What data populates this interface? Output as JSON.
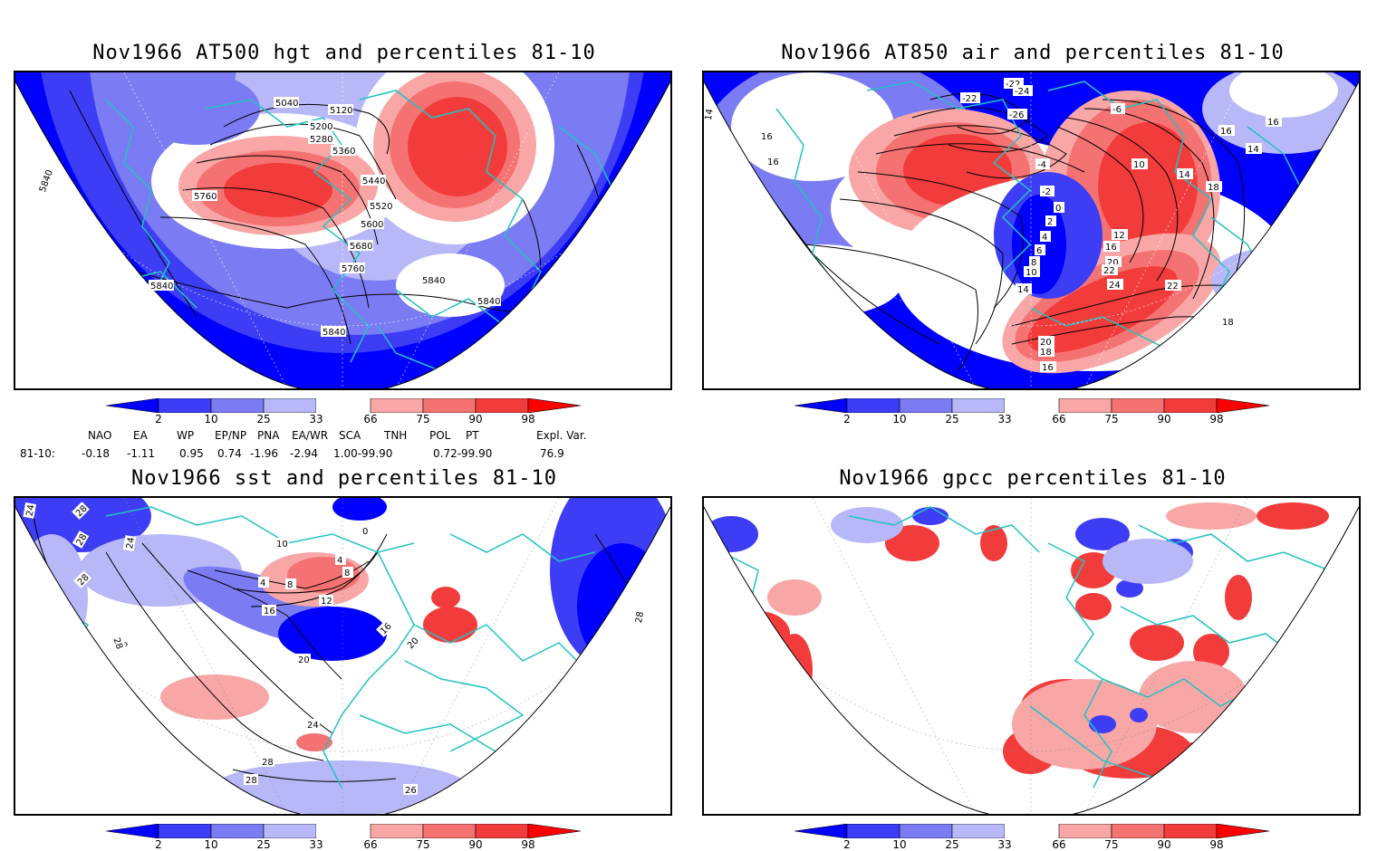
{
  "panels": [
    {
      "id": "hgt500",
      "title": "Nov1966 AT500 hgt and percentiles 81-10",
      "contour_labels": [
        "5040",
        "5120",
        "5200",
        "5280",
        "5360",
        "5440",
        "5520",
        "5600",
        "5680",
        "5760",
        "5760",
        "5840",
        "5840",
        "5840",
        "5840",
        "5840"
      ]
    },
    {
      "id": "air850",
      "title": "Nov1966 AT850 air and percentiles 81-10",
      "contour_labels": [
        "-22",
        "-24",
        "-22",
        "-26",
        "-4",
        "-2",
        "0",
        "2",
        "4",
        "6",
        "8",
        "10",
        "14",
        "16",
        "16",
        "16",
        "14",
        "16",
        "18",
        "14",
        "-6",
        "10",
        "12",
        "16",
        "20",
        "22",
        "24",
        "22",
        "20",
        "18",
        "16",
        "18",
        "14"
      ]
    },
    {
      "id": "sst",
      "title": "Nov1966 sst and percentiles 81-10",
      "contour_labels": [
        "24",
        "28",
        "28",
        "24",
        "28",
        "28",
        "10",
        "4",
        "8",
        "12",
        "16",
        "16",
        "20",
        "20",
        "24",
        "28",
        "28",
        "28",
        "26",
        "0",
        "4",
        "8",
        "28"
      ]
    },
    {
      "id": "gpcc",
      "title": "Nov1966 gpcc percentiles 81-10",
      "contour_labels": []
    }
  ],
  "colorbar": {
    "ticks": [
      "2",
      "10",
      "25",
      "33",
      "66",
      "75",
      "90",
      "98"
    ],
    "colors": {
      "deep_blue": "#0000ff",
      "mid_blue": "#3d3df5",
      "light_blue": "#7b7bf3",
      "pale_blue": "#b8b8f8",
      "pale_red": "#f8a6a6",
      "light_red": "#f57272",
      "mid_red": "#f23c3c",
      "deep_red": "#ff0000",
      "coast": "#21c3c0"
    }
  },
  "teleconnections": {
    "headers": [
      "NAO",
      "EA",
      "WP",
      "EP/NP",
      "PNA",
      "EA/WR",
      "SCA",
      "TNH",
      "POL",
      "PT",
      "Expl. Var."
    ],
    "row_label": "81-10:",
    "values": [
      "-0.18",
      "-1.11",
      "0.95",
      "0.74",
      "-1.96",
      "-2.94",
      "1.00-99.90",
      "0.72-99.90",
      "76.9"
    ]
  }
}
